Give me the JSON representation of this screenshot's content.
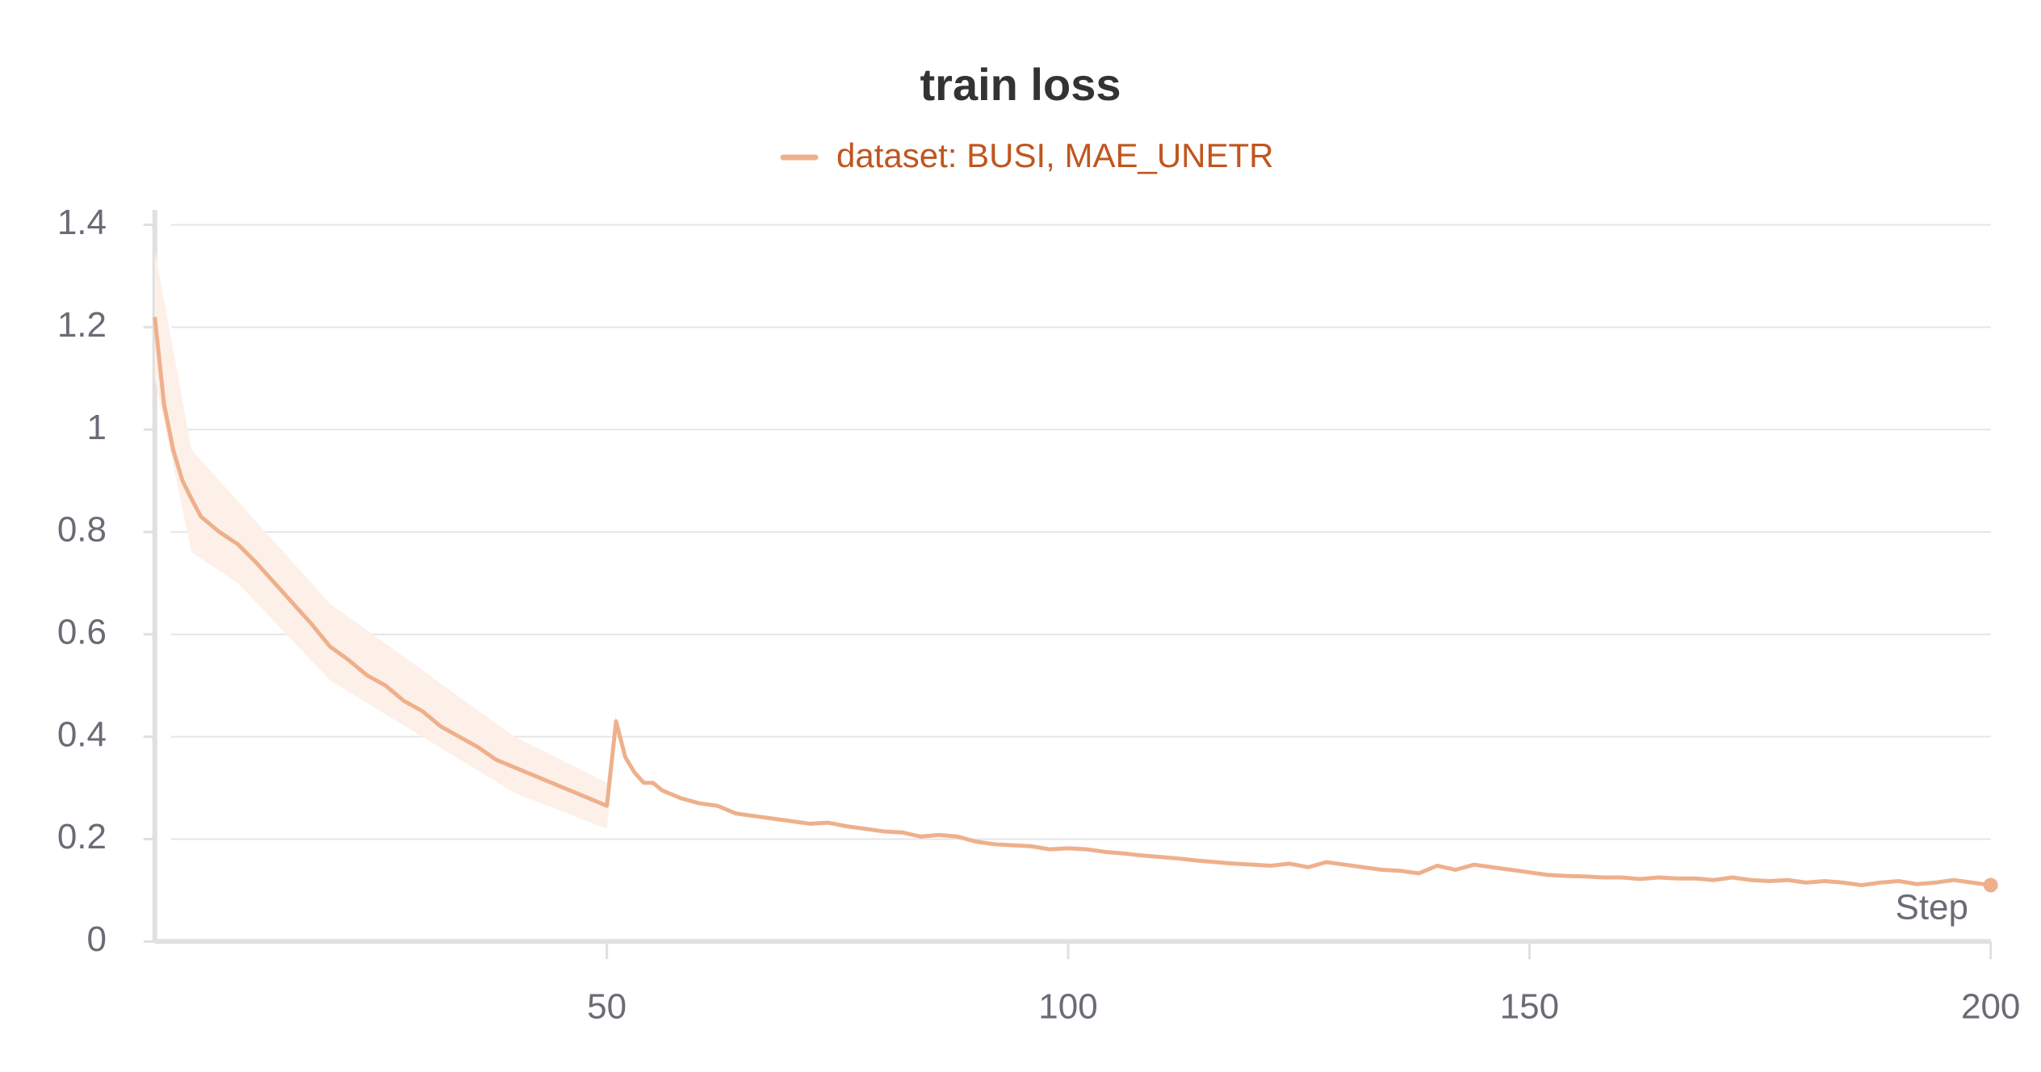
{
  "chart_data": {
    "type": "line",
    "title": "train loss",
    "xlabel": "Step",
    "x": [
      1,
      2,
      3,
      4,
      5,
      6,
      8,
      10,
      12,
      14,
      16,
      18,
      20,
      22,
      24,
      26,
      28,
      30,
      32,
      34,
      36,
      38,
      40,
      42,
      44,
      46,
      48,
      50,
      51,
      52,
      53,
      54,
      55,
      56,
      58,
      60,
      62,
      64,
      66,
      68,
      70,
      72,
      74,
      76,
      78,
      80,
      82,
      84,
      86,
      88,
      90,
      92,
      94,
      96,
      98,
      100,
      102,
      104,
      106,
      108,
      110,
      112,
      114,
      116,
      118,
      120,
      122,
      124,
      126,
      128,
      130,
      132,
      134,
      136,
      138,
      140,
      142,
      144,
      146,
      148,
      150,
      152,
      154,
      156,
      158,
      160,
      162,
      164,
      166,
      168,
      170,
      172,
      174,
      176,
      178,
      180,
      182,
      184,
      186,
      188,
      190,
      192,
      194,
      196,
      198,
      200
    ],
    "series": [
      {
        "name": "dataset: BUSI, MAE_UNETR",
        "color": "#eeb08c",
        "label_color": "#c0561e",
        "values": [
          1.22,
          1.05,
          0.96,
          0.9,
          0.864,
          0.83,
          0.8,
          0.776,
          0.74,
          0.7,
          0.66,
          0.62,
          0.576,
          0.55,
          0.52,
          0.5,
          0.47,
          0.45,
          0.42,
          0.4,
          0.38,
          0.355,
          0.34,
          0.325,
          0.31,
          0.295,
          0.28,
          0.265,
          0.43,
          0.36,
          0.33,
          0.31,
          0.31,
          0.295,
          0.28,
          0.27,
          0.265,
          0.25,
          0.245,
          0.24,
          0.235,
          0.23,
          0.232,
          0.225,
          0.22,
          0.215,
          0.213,
          0.205,
          0.208,
          0.205,
          0.195,
          0.19,
          0.188,
          0.186,
          0.18,
          0.182,
          0.18,
          0.175,
          0.172,
          0.168,
          0.165,
          0.162,
          0.158,
          0.155,
          0.152,
          0.15,
          0.148,
          0.152,
          0.145,
          0.155,
          0.15,
          0.145,
          0.14,
          0.138,
          0.133,
          0.148,
          0.14,
          0.15,
          0.145,
          0.14,
          0.135,
          0.13,
          0.128,
          0.127,
          0.125,
          0.125,
          0.122,
          0.125,
          0.123,
          0.123,
          0.12,
          0.125,
          0.12,
          0.118,
          0.12,
          0.115,
          0.118,
          0.115,
          0.11,
          0.115,
          0.118,
          0.112,
          0.115,
          0.12,
          0.115,
          0.11
        ]
      }
    ],
    "band": {
      "color": "#fdf0e8",
      "x": [
        1,
        5,
        10,
        20,
        30,
        40,
        50,
        51
      ],
      "lower": [
        1.1,
        0.76,
        0.7,
        0.51,
        0.4,
        0.29,
        0.22,
        0.4
      ],
      "upper": [
        1.35,
        0.96,
        0.86,
        0.66,
        0.53,
        0.4,
        0.31,
        0.45
      ]
    },
    "xlim": [
      1,
      200
    ],
    "xticks": [
      50,
      100,
      150,
      200
    ],
    "ylim": [
      0,
      1.4
    ],
    "yticks": [
      0,
      0.2,
      0.4,
      0.6,
      0.8,
      1,
      1.2,
      1.4
    ],
    "grid": true
  }
}
